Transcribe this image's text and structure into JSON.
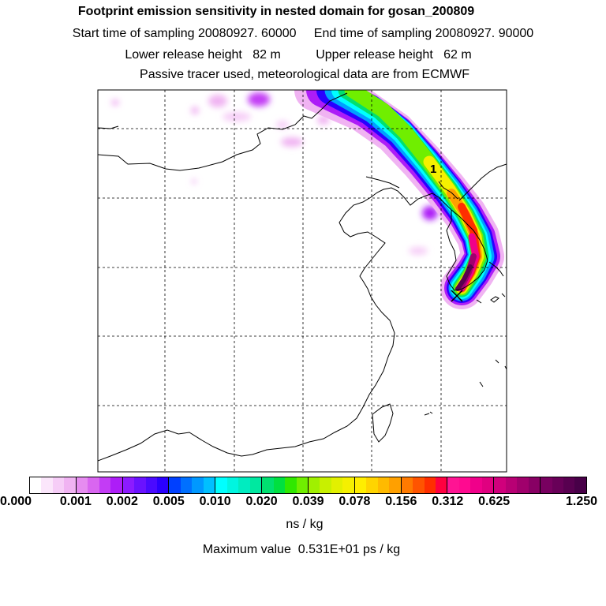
{
  "header": {
    "title": "Footprint emission sensitivity in nested domain for gosan_200809",
    "sampling_line": "Start time of sampling 20080927. 60000     End time of sampling 20080927. 90000",
    "release_line": "Lower release height   82 m          Upper release height   62 m",
    "tracer_line": "Passive tracer used, meteorological data are from ECMWF"
  },
  "map": {
    "marker_label": "1",
    "grid_lines": "dashed",
    "coastline_color": "#000000"
  },
  "colorbar": {
    "ticks": [
      "0.000",
      "0.001",
      "0.002",
      "0.005",
      "0.010",
      "0.020",
      "0.039",
      "0.078",
      "0.156",
      "0.312",
      "0.625",
      "1.250"
    ],
    "segments": [
      [
        "#ffffff",
        "#fbe6fb",
        "#f6cdf7",
        "#f0b3f2"
      ],
      [
        "#e68cf0",
        "#d966f0",
        "#c33cf5",
        "#ad1df7"
      ],
      [
        "#8c1bff",
        "#6a12ff",
        "#4a0aff",
        "#2a00ff"
      ],
      [
        "#0040ff",
        "#0070ff",
        "#0098ff",
        "#00c0ff"
      ],
      [
        "#00ffff",
        "#00f5e0",
        "#00ecc0",
        "#00e8a0"
      ],
      [
        "#00e070",
        "#00e040",
        "#30e800",
        "#70ee00"
      ],
      [
        "#a0f000",
        "#c8f000",
        "#e2f000",
        "#f5f000"
      ],
      [
        "#ffee00",
        "#ffd400",
        "#ffba00",
        "#ffa000"
      ],
      [
        "#ff7a00",
        "#ff5400",
        "#ff2e00",
        "#ff0040"
      ],
      [
        "#ff1493",
        "#ff0a90",
        "#f0008a",
        "#e00080"
      ],
      [
        "#d0007c",
        "#b80074",
        "#a0006c",
        "#880064"
      ],
      [
        "#780060",
        "#680058",
        "#580050",
        "#480048"
      ]
    ],
    "unit": "ns / kg"
  },
  "footer": {
    "maximum_label": "Maximum value  0.531E+01 ps / kg"
  }
}
